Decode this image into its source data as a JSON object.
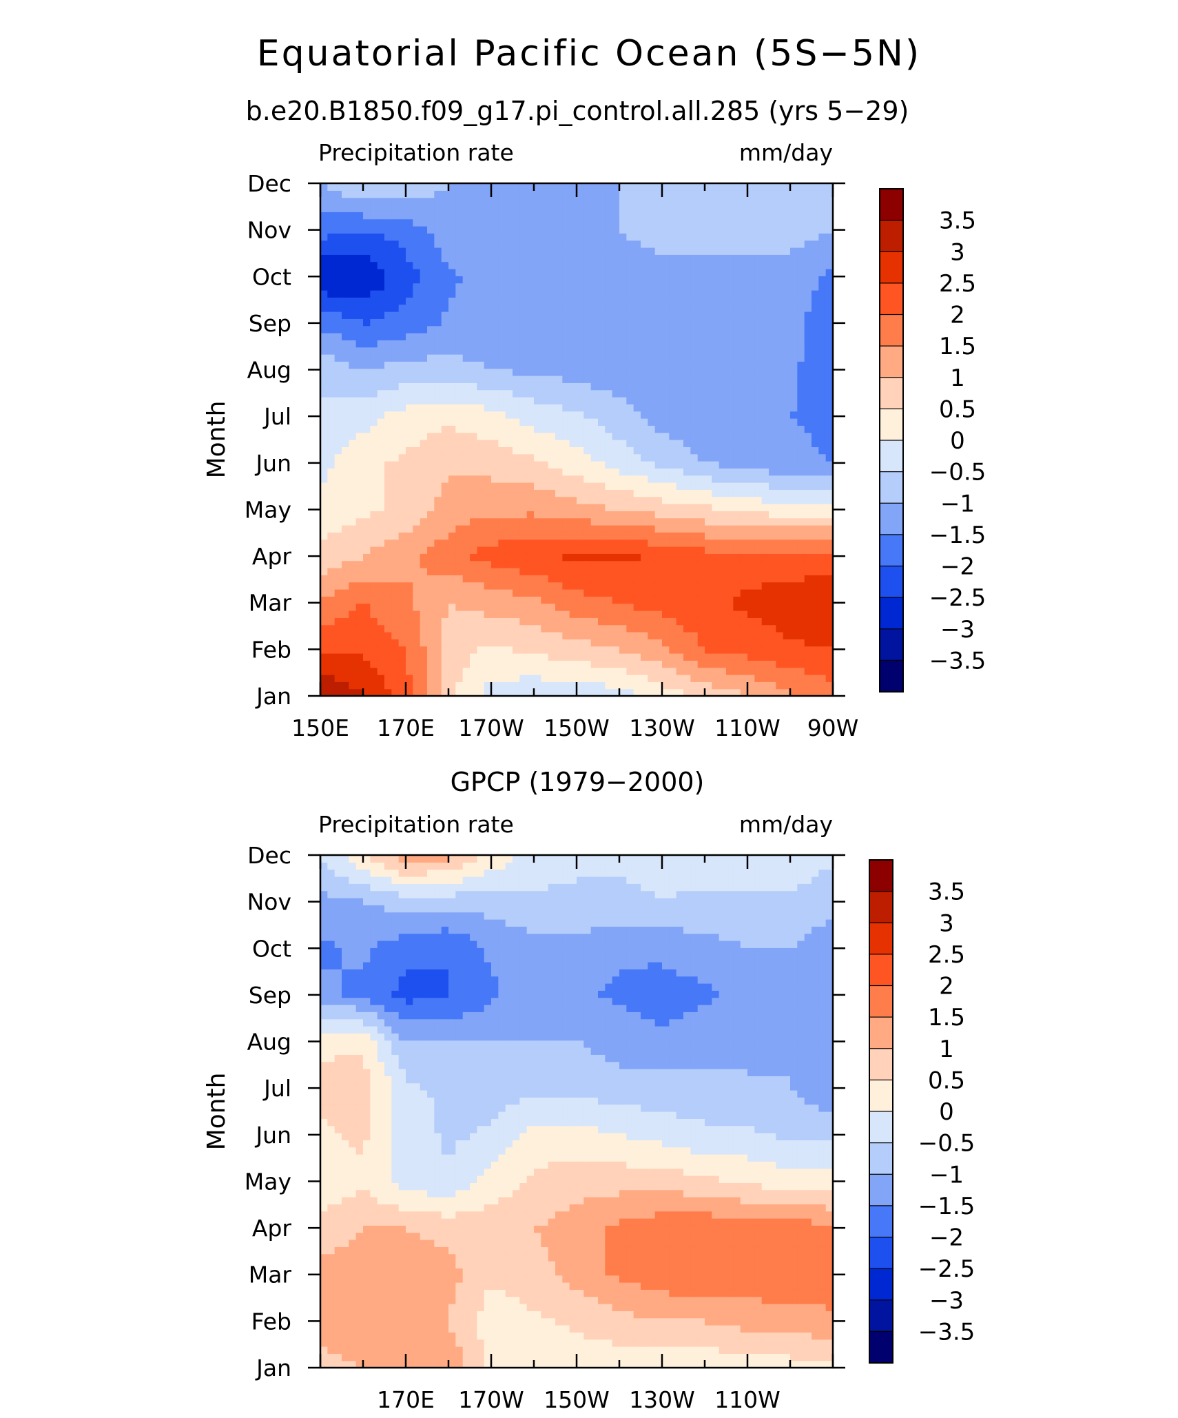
{
  "title": "Equatorial Pacific Ocean (5S−5N)",
  "colors": [
    "#00006e",
    "#0014a0",
    "#0028d2",
    "#1e50f0",
    "#4678f8",
    "#82a5f8",
    "#b4cdfa",
    "#d7e6fa",
    "#fff0dc",
    "#ffd2b9",
    "#ffaa82",
    "#ff7d4b",
    "#ff5523",
    "#e63200",
    "#be1e00",
    "#8c0000"
  ],
  "chart_data": [
    {
      "type": "heatmap",
      "subtitle": "b.e20.B1850.f09_g17.pi_control.all.285 (yrs 5−29)",
      "left_label": "Precipitation rate",
      "right_label": "mm/day",
      "ylabel": "Month",
      "x_ticks": [
        "150E",
        "170E",
        "170W",
        "150W",
        "130W",
        "110W",
        "90W"
      ],
      "y_ticks": [
        "Jan",
        "Feb",
        "Mar",
        "Apr",
        "May",
        "Jun",
        "Jul",
        "Aug",
        "Sep",
        "Oct",
        "Nov",
        "Dec"
      ],
      "colorbar_labels": [
        "3.5",
        "3",
        "2.5",
        "2",
        "1.5",
        "1",
        "0.5",
        "0",
        "−0.5",
        "−1",
        "−1.5",
        "−2",
        "−2.5",
        "−3",
        "−3.5"
      ],
      "levels": [
        -3.5,
        -3,
        -2.5,
        -2,
        -1.5,
        -1,
        -0.5,
        0,
        0.5,
        1,
        1.5,
        2,
        2.5,
        3,
        3.5
      ],
      "x": [
        150,
        160,
        170,
        180,
        190,
        200,
        210,
        220,
        230,
        240,
        250,
        260,
        270
      ],
      "z": [
        [
          3.6,
          3.0,
          2.2,
          0.6,
          -0.2,
          -0.4,
          -0.4,
          -0.2,
          0.2,
          0.6,
          1.0,
          1.4,
          1.8
        ],
        [
          2.4,
          2.4,
          2.0,
          0.8,
          0.4,
          0.6,
          0.8,
          1.0,
          1.4,
          2.0,
          2.2,
          2.4,
          2.5
        ],
        [
          1.6,
          2.0,
          1.6,
          1.0,
          1.2,
          1.4,
          1.8,
          2.0,
          2.2,
          2.4,
          2.6,
          2.8,
          2.9
        ],
        [
          0.6,
          1.0,
          1.4,
          1.8,
          2.2,
          2.4,
          2.6,
          2.6,
          2.4,
          2.2,
          2.2,
          2.2,
          2.2
        ],
        [
          0.2,
          0.4,
          0.6,
          1.2,
          1.4,
          1.4,
          1.2,
          1.0,
          0.8,
          0.6,
          0.4,
          0.2,
          0.2
        ],
        [
          -0.2,
          0.4,
          0.6,
          0.9,
          0.8,
          0.6,
          0.2,
          -0.2,
          -0.6,
          -1.0,
          -1.2,
          -1.4,
          -1.5
        ],
        [
          -0.4,
          -0.2,
          0.2,
          0.4,
          0.2,
          -0.2,
          -0.4,
          -0.8,
          -1.2,
          -1.3,
          -1.4,
          -1.5,
          -1.6
        ],
        [
          -0.6,
          -1.0,
          -0.8,
          -0.8,
          -1.0,
          -1.1,
          -1.2,
          -1.3,
          -1.4,
          -1.4,
          -1.4,
          -1.4,
          -1.9
        ],
        [
          -1.6,
          -2.0,
          -1.8,
          -1.4,
          -1.3,
          -1.2,
          -1.2,
          -1.2,
          -1.2,
          -1.2,
          -1.2,
          -1.2,
          -2.0
        ],
        [
          -3.0,
          -3.0,
          -2.2,
          -1.6,
          -1.3,
          -1.2,
          -1.2,
          -1.2,
          -1.2,
          -1.2,
          -1.2,
          -1.2,
          -1.6
        ],
        [
          -1.8,
          -2.0,
          -1.8,
          -1.2,
          -1.2,
          -1.2,
          -1.2,
          -1.0,
          -0.8,
          -0.8,
          -0.8,
          -0.8,
          -1.0
        ],
        [
          -1.0,
          -0.4,
          -0.6,
          -1.0,
          -1.1,
          -1.1,
          -1.1,
          -1.0,
          -0.9,
          -0.8,
          -0.8,
          -0.8,
          -0.8
        ]
      ]
    },
    {
      "type": "heatmap",
      "subtitle": "GPCP (1979−2000)",
      "left_label": "Precipitation rate",
      "right_label": "mm/day",
      "ylabel": "Month",
      "x_ticks": [
        "170E",
        "170W",
        "150W",
        "130W",
        "110W"
      ],
      "y_ticks": [
        "Jan",
        "Feb",
        "Mar",
        "Apr",
        "May",
        "Jun",
        "Jul",
        "Aug",
        "Sep",
        "Oct",
        "Nov",
        "Dec"
      ],
      "colorbar_labels": [
        "3.5",
        "3",
        "2.5",
        "2",
        "1.5",
        "1",
        "0.5",
        "0",
        "−0.5",
        "−1",
        "−1.5",
        "−2",
        "−2.5",
        "−3",
        "−3.5"
      ],
      "levels": [
        -3.5,
        -3,
        -2.5,
        -2,
        -1.5,
        -1,
        -0.5,
        0,
        0.5,
        1,
        1.5,
        2,
        2.5,
        3,
        3.5
      ],
      "x": [
        150,
        160,
        170,
        180,
        190,
        200,
        210,
        220,
        230,
        240,
        250,
        260,
        270
      ],
      "z": [
        [
          0.8,
          1.0,
          1.2,
          1.4,
          0.4,
          0.2,
          0.2,
          0.2,
          0.0,
          0.1,
          0.2,
          0.3,
          0.4
        ],
        [
          1.2,
          1.4,
          1.2,
          1.0,
          0.2,
          0.4,
          0.6,
          0.8,
          1.0,
          1.0,
          1.2,
          1.2,
          1.4
        ],
        [
          1.2,
          1.4,
          1.4,
          1.2,
          0.6,
          0.8,
          1.2,
          1.6,
          1.8,
          2.0,
          1.8,
          2.0,
          1.8
        ],
        [
          0.6,
          1.0,
          1.0,
          0.8,
          0.8,
          1.0,
          1.2,
          1.6,
          1.8,
          1.9,
          1.8,
          1.8,
          1.6
        ],
        [
          0.2,
          0.4,
          -0.2,
          -0.4,
          0.2,
          0.6,
          0.8,
          0.8,
          0.8,
          0.6,
          0.4,
          0.2,
          0.2
        ],
        [
          0.4,
          0.6,
          -0.2,
          -0.6,
          -0.4,
          0.2,
          0.2,
          0.0,
          -0.2,
          -0.4,
          -0.4,
          -0.6,
          -0.6
        ],
        [
          0.6,
          0.8,
          -0.4,
          -0.6,
          -0.8,
          -0.6,
          -0.6,
          -0.8,
          -0.8,
          -0.8,
          -0.9,
          -1.0,
          -1.4
        ],
        [
          0.4,
          0.4,
          -1.0,
          -1.0,
          -1.0,
          -1.0,
          -1.0,
          -1.2,
          -1.4,
          -1.2,
          -1.2,
          -1.0,
          -1.2
        ],
        [
          -1.4,
          -1.6,
          -2.2,
          -2.0,
          -1.6,
          -1.2,
          -1.4,
          -1.6,
          -1.7,
          -1.6,
          -1.3,
          -1.0,
          -1.4
        ],
        [
          -1.6,
          -1.4,
          -1.8,
          -2.0,
          -1.4,
          -1.2,
          -1.2,
          -1.4,
          -1.4,
          -1.2,
          -1.0,
          -1.0,
          -1.4
        ],
        [
          -1.2,
          -1.0,
          -0.8,
          -0.8,
          -0.8,
          -0.6,
          -0.6,
          -0.6,
          -0.5,
          -0.6,
          -0.6,
          -0.6,
          -0.8
        ],
        [
          -0.4,
          0.4,
          1.4,
          1.2,
          0.4,
          -0.2,
          -0.4,
          -0.4,
          -0.4,
          -0.2,
          -0.2,
          -0.2,
          -0.4
        ]
      ]
    }
  ]
}
